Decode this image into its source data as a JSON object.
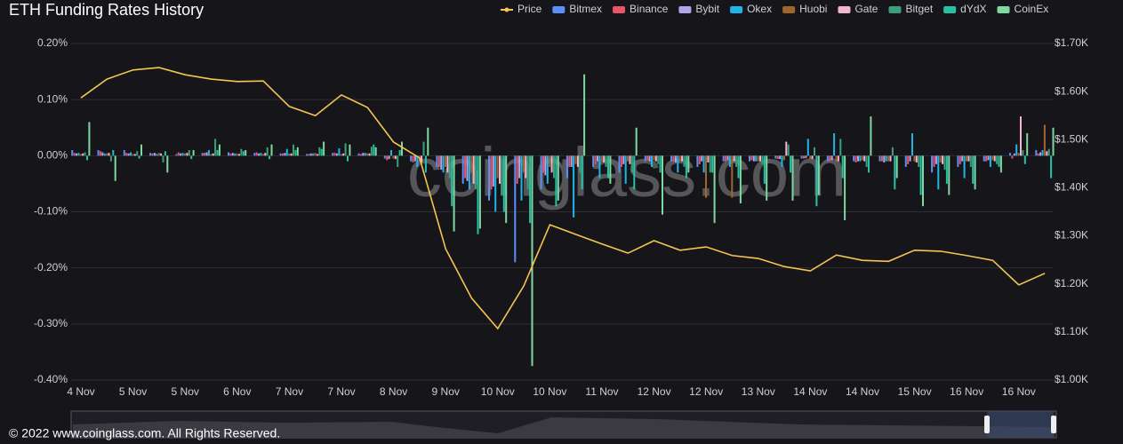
{
  "chart_data": {
    "type": "bar",
    "title": "ETH Funding Rates History",
    "watermark": "coinglass.com",
    "footer": "© 2022 www.coinglass.com. All Rights Reserved.",
    "categories": [
      "4 Nov",
      null,
      "5 Nov",
      null,
      "5 Nov",
      null,
      "6 Nov",
      null,
      "7 Nov",
      null,
      "7 Nov",
      null,
      "8 Nov",
      null,
      "9 Nov",
      null,
      "10 Nov",
      null,
      "10 Nov",
      null,
      "11 Nov",
      null,
      "12 Nov",
      null,
      "12 Nov",
      null,
      "13 Nov",
      null,
      "14 Nov",
      null,
      "14 Nov",
      null,
      "15 Nov",
      null,
      "16 Nov",
      null,
      "16 Nov",
      null
    ],
    "ylim": [
      -0.4,
      0.2
    ],
    "yticks": [
      {
        "value": -0.4,
        "label": "-0.40%"
      },
      {
        "value": -0.3,
        "label": "-0.30%"
      },
      {
        "value": -0.2,
        "label": "-0.20%"
      },
      {
        "value": -0.1,
        "label": "-0.10%"
      },
      {
        "value": 0,
        "label": "0.00%"
      },
      {
        "value": 0.1,
        "label": "0.10%"
      },
      {
        "value": 0.2,
        "label": "0.20%"
      }
    ],
    "y2lim": [
      1000,
      1700
    ],
    "y2ticks": [
      {
        "value": 1000,
        "label": "$1.00K"
      },
      {
        "value": 1100,
        "label": "$1.10K"
      },
      {
        "value": 1200,
        "label": "$1.20K"
      },
      {
        "value": 1300,
        "label": "$1.30K"
      },
      {
        "value": 1400,
        "label": "$1.40K"
      },
      {
        "value": 1500,
        "label": "$1.50K"
      },
      {
        "value": 1600,
        "label": "$1.60K"
      },
      {
        "value": 1700,
        "label": "$1.70K"
      }
    ],
    "grid": true,
    "series": [
      {
        "name": "Price",
        "color": "#f5c451",
        "axis": "y2",
        "type": "line",
        "values": [
          1587,
          1626,
          1645,
          1650,
          1635,
          1626,
          1621,
          1622,
          1569,
          1550,
          1593,
          1567,
          1495,
          1462,
          1273,
          1170,
          1107,
          1196,
          1323,
          1303,
          1283,
          1264,
          1290,
          1270,
          1277,
          1259,
          1253,
          1236,
          1227,
          1260,
          1249,
          1247,
          1270,
          1268,
          1259,
          1249,
          1198,
          1222
        ]
      },
      {
        "name": "Bitmex",
        "color": "#5b8ff9",
        "values": [
          0.01,
          0.01,
          0.01,
          0.005,
          0.003,
          0.005,
          0.006,
          0.005,
          0.004,
          0.003,
          0.005,
          0.004,
          -0.005,
          -0.01,
          -0.02,
          -0.05,
          -0.08,
          -0.19,
          -0.06,
          -0.04,
          -0.02,
          -0.03,
          -0.01,
          -0.01,
          -0.02,
          -0.01,
          -0.01,
          -0.005,
          -0.005,
          -0.01,
          -0.01,
          -0.01,
          -0.02,
          -0.03,
          -0.02,
          -0.01,
          0.005,
          0.01
        ]
      },
      {
        "name": "Binance",
        "color": "#e8546a",
        "values": [
          0.005,
          0.008,
          0.005,
          0.004,
          0.006,
          0.005,
          0.004,
          0.006,
          0.004,
          0.003,
          0.005,
          0.003,
          -0.008,
          -0.012,
          -0.02,
          -0.04,
          -0.06,
          -0.05,
          -0.03,
          -0.02,
          -0.015,
          -0.02,
          -0.008,
          -0.01,
          -0.015,
          -0.01,
          -0.008,
          -0.006,
          -0.005,
          -0.01,
          -0.012,
          -0.01,
          -0.015,
          -0.02,
          -0.015,
          -0.01,
          -0.005,
          0.004
        ]
      },
      {
        "name": "Bybit",
        "color": "#b3a6e8",
        "values": [
          0.004,
          0.006,
          0.004,
          0.005,
          0.004,
          0.006,
          0.005,
          0.004,
          0.005,
          0.004,
          0.004,
          0.005,
          -0.006,
          -0.01,
          -0.025,
          -0.045,
          -0.055,
          -0.04,
          -0.035,
          -0.02,
          -0.01,
          -0.015,
          -0.01,
          -0.012,
          -0.01,
          -0.008,
          -0.01,
          -0.006,
          -0.004,
          -0.008,
          -0.01,
          -0.012,
          -0.01,
          -0.015,
          -0.01,
          -0.008,
          0.004,
          0.006
        ]
      },
      {
        "name": "Okex",
        "color": "#1fb5e8",
        "values": [
          0.005,
          0.004,
          0.006,
          0.003,
          0.005,
          0.01,
          0.004,
          0.005,
          0.012,
          0.004,
          0.013,
          0.005,
          0.01,
          -0.02,
          -0.03,
          -0.06,
          -0.1,
          -0.08,
          -0.05,
          -0.11,
          -0.04,
          -0.05,
          -0.02,
          -0.03,
          -0.03,
          -0.02,
          -0.01,
          -0.02,
          0.03,
          0.04,
          -0.01,
          -0.01,
          0.04,
          -0.06,
          -0.04,
          -0.02,
          0.02,
          0.01
        ]
      },
      {
        "name": "Huobi",
        "color": "#a0642d",
        "values": [
          0.003,
          0.004,
          0.003,
          0.005,
          0.004,
          0.003,
          0.004,
          0.003,
          0.004,
          0.005,
          0.003,
          0.004,
          -0.005,
          -0.01,
          -0.02,
          -0.03,
          -0.04,
          -0.03,
          -0.02,
          -0.015,
          -0.01,
          -0.01,
          -0.008,
          -0.01,
          -0.075,
          -0.075,
          -0.01,
          -0.008,
          -0.006,
          -0.01,
          -0.008,
          -0.01,
          -0.01,
          -0.012,
          -0.01,
          -0.008,
          0.005,
          0.055
        ]
      },
      {
        "name": "Gate",
        "color": "#f4b6cf",
        "values": [
          0.004,
          0.005,
          0.003,
          0.004,
          0.005,
          0.004,
          0.003,
          0.005,
          0.004,
          0.003,
          0.004,
          0.004,
          -0.006,
          -0.012,
          -0.03,
          -0.05,
          -0.05,
          -0.04,
          -0.03,
          -0.02,
          -0.012,
          -0.015,
          -0.01,
          -0.01,
          -0.012,
          -0.01,
          -0.01,
          0.025,
          -0.006,
          -0.01,
          -0.01,
          -0.01,
          -0.012,
          -0.015,
          -0.01,
          -0.01,
          0.07,
          0.008
        ]
      },
      {
        "name": "Bitget",
        "color": "#3b9f7a",
        "values": [
          0.006,
          -0.01,
          0.008,
          -0.012,
          0.01,
          0.03,
          0.012,
          0.015,
          0.02,
          0.015,
          0.022,
          0.016,
          -0.02,
          0.025,
          -0.04,
          -0.06,
          -0.07,
          -0.06,
          -0.04,
          -0.03,
          -0.02,
          -0.03,
          -0.015,
          -0.02,
          -0.03,
          -0.02,
          -0.015,
          0.02,
          0.015,
          0.03,
          -0.02,
          0.015,
          -0.02,
          -0.025,
          -0.02,
          -0.015,
          0.01,
          0.012
        ]
      },
      {
        "name": "dYdX",
        "color": "#26c2a8",
        "values": [
          -0.008,
          0.01,
          -0.005,
          0.008,
          -0.006,
          0.01,
          0.008,
          -0.006,
          0.01,
          0.012,
          -0.01,
          0.02,
          0.01,
          -0.03,
          -0.09,
          -0.14,
          -0.1,
          -0.12,
          -0.09,
          -0.06,
          -0.04,
          -0.06,
          -0.03,
          -0.04,
          -0.03,
          -0.04,
          -0.05,
          -0.03,
          -0.09,
          -0.04,
          -0.03,
          -0.06,
          -0.07,
          -0.05,
          -0.05,
          -0.02,
          -0.015,
          -0.04
        ]
      },
      {
        "name": "CoinEx",
        "color": "#7ed8a0",
        "values": [
          0.06,
          -0.045,
          0.02,
          -0.03,
          0.01,
          0.02,
          0.01,
          0.02,
          0.015,
          0.025,
          0.02,
          0.015,
          0.025,
          0.05,
          -0.135,
          -0.13,
          -0.12,
          -0.375,
          -0.08,
          0.145,
          -0.05,
          0.05,
          -0.105,
          -0.03,
          -0.12,
          -0.085,
          -0.08,
          -0.08,
          -0.07,
          -0.115,
          0.07,
          -0.04,
          -0.09,
          -0.07,
          -0.06,
          -0.03,
          0.04,
          0.05
        ]
      }
    ]
  }
}
